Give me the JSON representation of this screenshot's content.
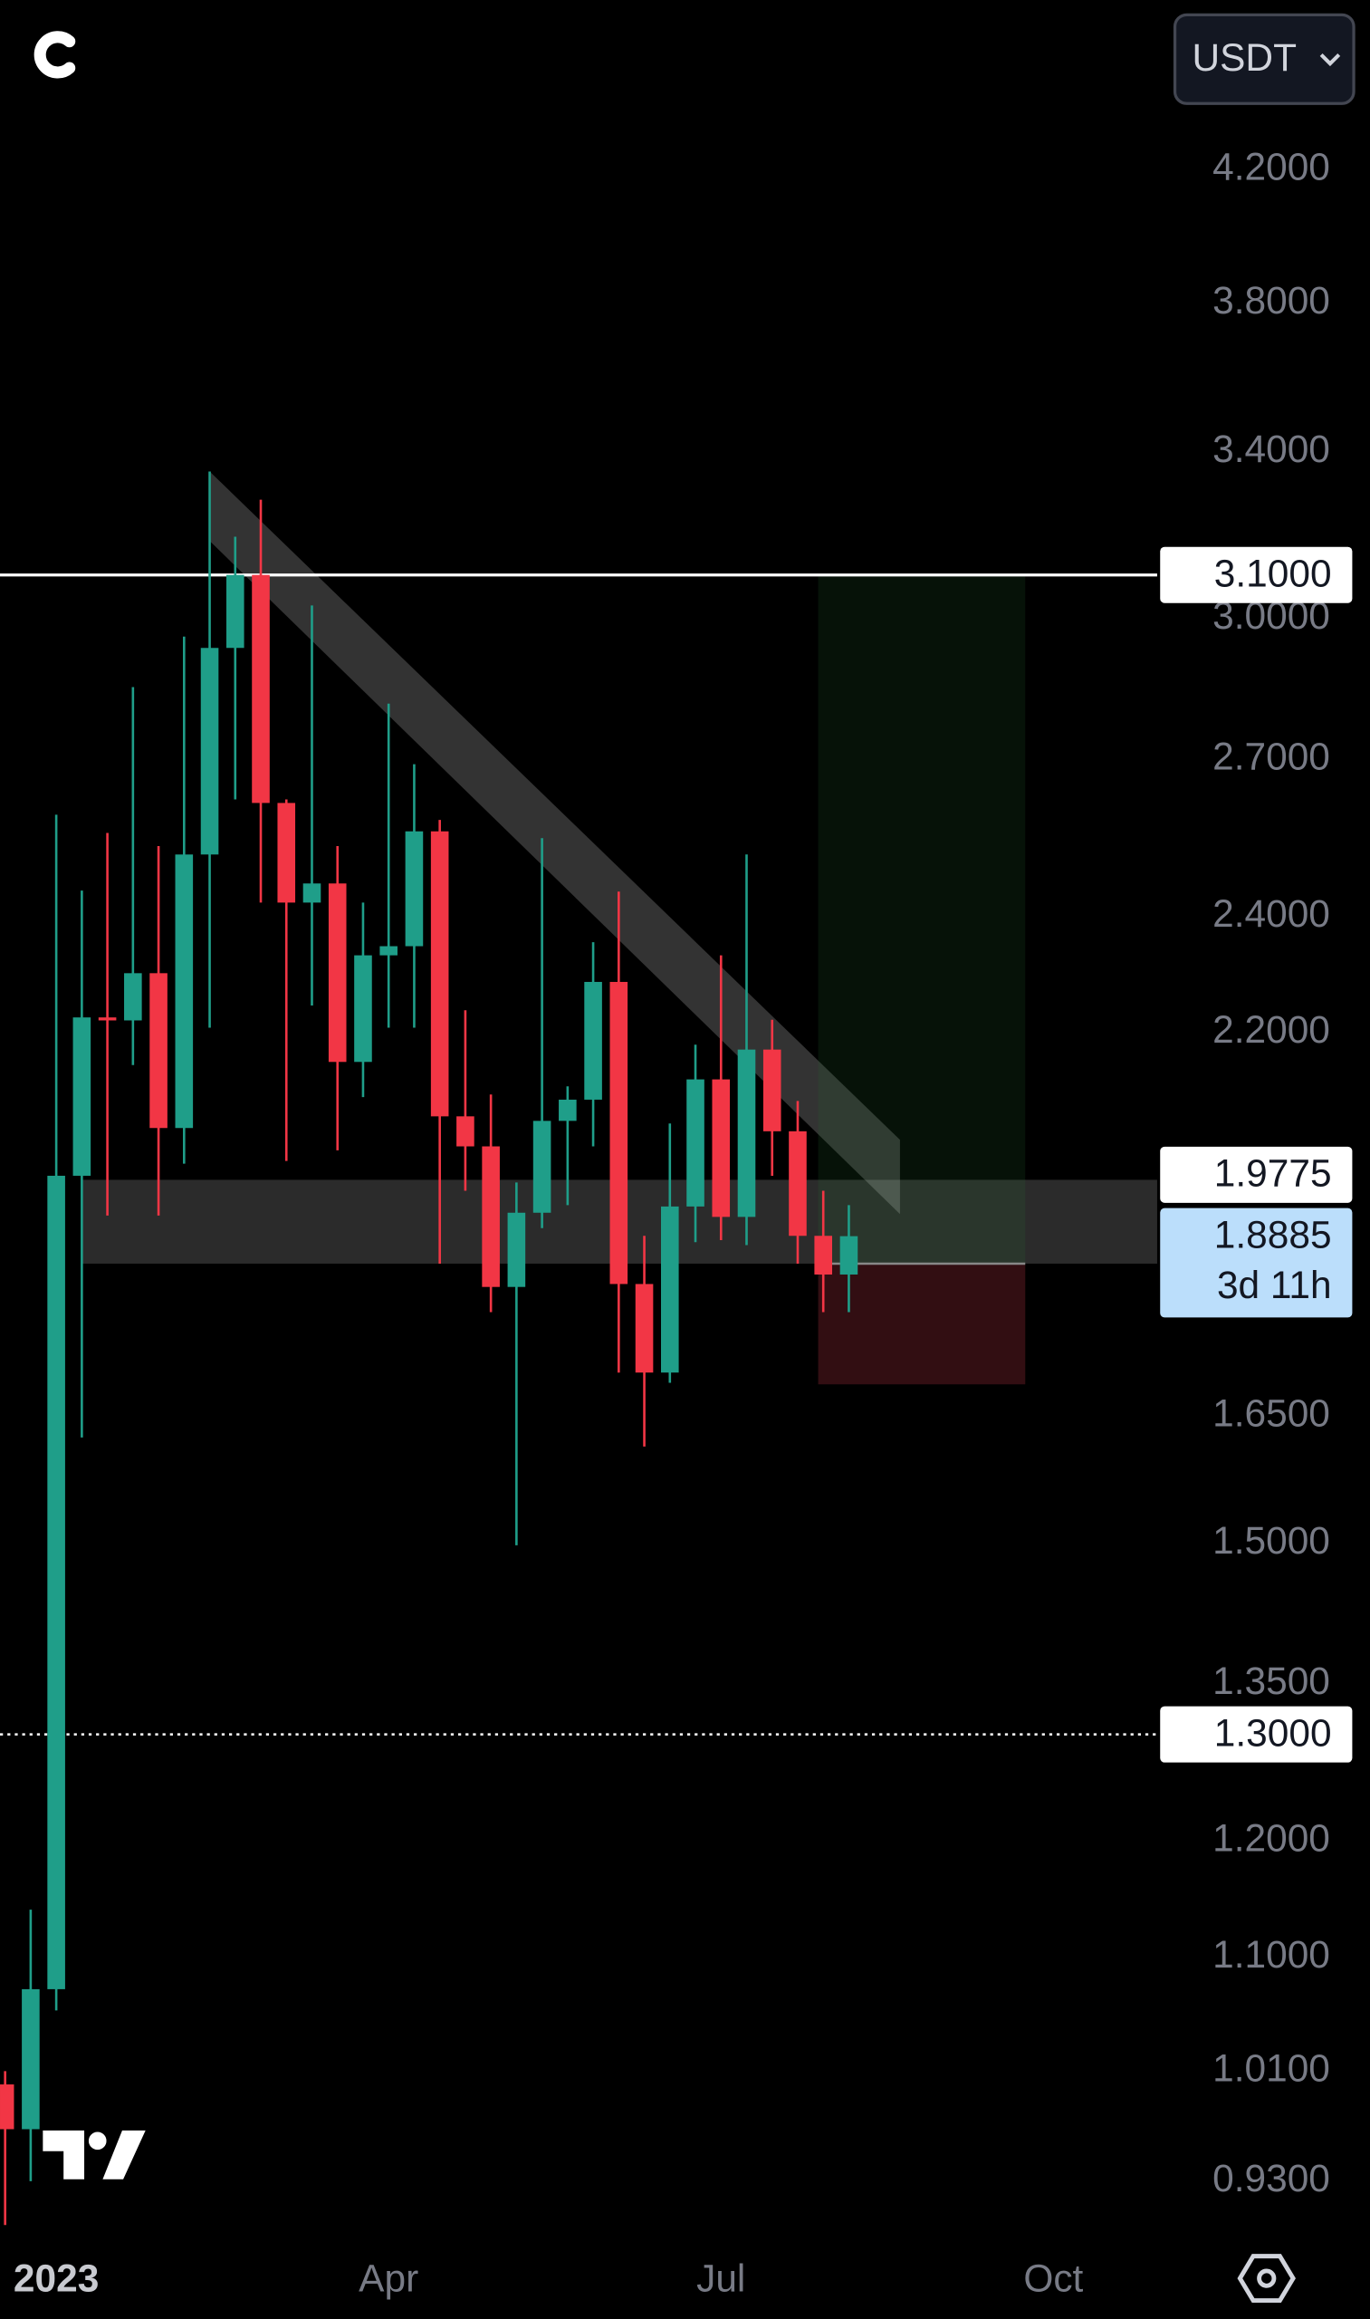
{
  "chart_data": {
    "type": "candlestick",
    "currency": "USDT",
    "categories": [
      null,
      null,
      null,
      null,
      null,
      null,
      null,
      null,
      null,
      null,
      null,
      null,
      null,
      null,
      null,
      null,
      null,
      null,
      null,
      null,
      null,
      null,
      null,
      null,
      null,
      null,
      null,
      null,
      null,
      null,
      null,
      null,
      null,
      null
    ],
    "open": [
      1.0,
      0.967,
      1.074,
      1.976,
      2.225,
      2.22,
      2.3,
      2.048,
      2.514,
      2.935,
      3.1,
      2.613,
      2.425,
      2.46,
      2.152,
      2.331,
      2.347,
      2.558,
      2.066,
      2.02,
      1.818,
      1.922,
      2.059,
      2.092,
      2.285,
      1.822,
      1.705,
      1.931,
      2.124,
      1.916,
      2.172,
      2.043,
      1.889,
      1.835
    ],
    "high": [
      1.01,
      1.14,
      2.59,
      2.447,
      2.555,
      2.85,
      2.53,
      2.96,
      3.35,
      3.19,
      3.28,
      2.62,
      3.03,
      2.53,
      2.425,
      2.815,
      2.69,
      2.58,
      2.237,
      2.1,
      1.966,
      2.545,
      2.113,
      2.354,
      2.445,
      1.889,
      2.055,
      2.18,
      2.331,
      2.514,
      2.221,
      2.09,
      1.954,
      1.933
    ],
    "low": [
      0.9,
      0.93,
      1.057,
      1.624,
      1.918,
      2.147,
      1.918,
      1.994,
      2.208,
      2.62,
      2.425,
      1.998,
      2.245,
      2.014,
      2.096,
      2.208,
      2.208,
      1.85,
      1.954,
      1.784,
      1.498,
      1.9,
      1.933,
      2.02,
      1.705,
      1.613,
      1.692,
      1.88,
      1.883,
      1.876,
      1.976,
      1.85,
      1.784,
      1.784
    ],
    "close": [
      0.967,
      1.074,
      1.976,
      2.225,
      2.22,
      2.3,
      2.048,
      2.514,
      2.935,
      3.1,
      2.613,
      2.425,
      2.46,
      2.152,
      2.331,
      2.347,
      2.558,
      2.066,
      2.02,
      1.818,
      1.922,
      2.059,
      2.092,
      2.285,
      1.822,
      1.705,
      1.931,
      2.124,
      1.916,
      2.172,
      2.043,
      1.889,
      1.835,
      1.8885
    ],
    "up_color": "#1f9e89",
    "down_color": "#f23645",
    "xlim": [
      -0.2,
      45.06
    ],
    "xticks": [
      {
        "value": 2,
        "label": "2023"
      },
      {
        "value": 15,
        "label": "Apr"
      },
      {
        "value": 28,
        "label": "Jul"
      },
      {
        "value": 41,
        "label": "Oct"
      }
    ],
    "ylim": [
      0.89,
      4.77
    ],
    "log_scale": true,
    "yticks": [
      {
        "value": 4.2,
        "label": "4.2000"
      },
      {
        "value": 3.8,
        "label": "3.8000"
      },
      {
        "value": 3.4,
        "label": "3.4000"
      },
      {
        "value": 3.0,
        "label": "3.0000"
      },
      {
        "value": 2.7,
        "label": "2.7000"
      },
      {
        "value": 2.4,
        "label": "2.4000"
      },
      {
        "value": 2.2,
        "label": "2.2000"
      },
      {
        "value": 1.65,
        "label": "1.6500"
      },
      {
        "value": 1.5,
        "label": "1.5000"
      },
      {
        "value": 1.35,
        "label": "1.3500"
      },
      {
        "value": 1.2,
        "label": "1.2000"
      },
      {
        "value": 1.1,
        "label": "1.1000"
      },
      {
        "value": 1.01,
        "label": "1.0100"
      },
      {
        "value": 0.93,
        "label": "0.9300"
      }
    ],
    "zone": {
      "start": 3,
      "low": 1.85,
      "high": 1.97
    },
    "trend_channel": {
      "x": [
        8,
        35
      ],
      "upper": [
        3.35,
        2.03
      ],
      "lower": [
        3.18,
        1.92
      ]
    },
    "position": {
      "start": 31.8,
      "end": 39.9,
      "target": 3.1,
      "entry": 1.85,
      "stop": 1.69
    },
    "price_labels": [
      {
        "value": 3.1,
        "label": "3.1000",
        "line": "solid"
      },
      {
        "value": 1.9775,
        "label": "1.9775"
      },
      {
        "value": 1.8885,
        "label": "1.8885",
        "countdown": "3d 11h"
      },
      {
        "value": 1.3,
        "label": "1.3000",
        "line": "dotted"
      }
    ]
  }
}
